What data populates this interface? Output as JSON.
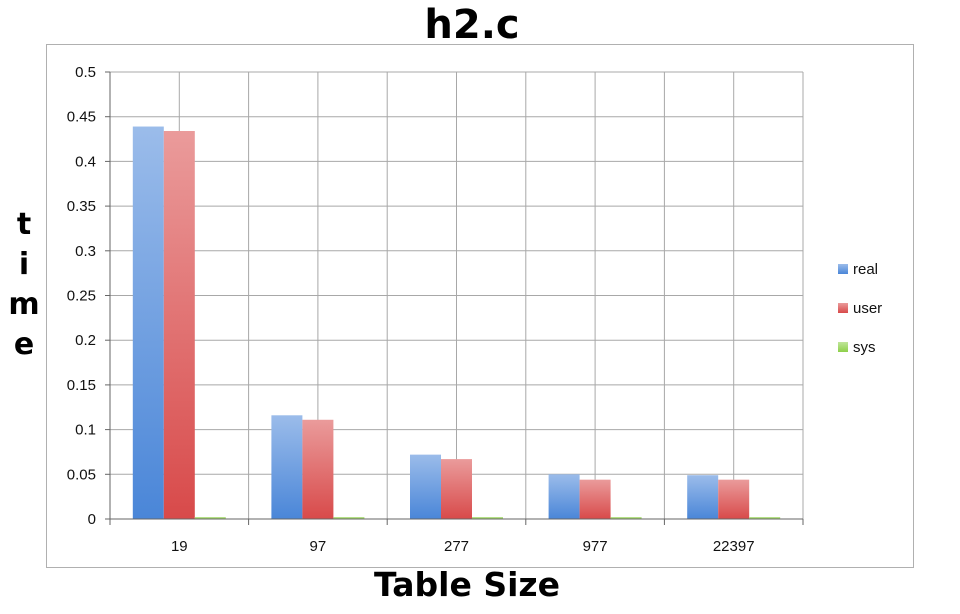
{
  "chart_data": {
    "type": "bar",
    "title": "h2.c",
    "xlabel": "Table Size",
    "ylabel": "time",
    "categories": [
      "19",
      "97",
      "277",
      "977",
      "22397"
    ],
    "series": [
      {
        "name": "real",
        "values": [
          0.439,
          0.116,
          0.072,
          0.05,
          0.049
        ],
        "color": "#4a86d8"
      },
      {
        "name": "user",
        "values": [
          0.434,
          0.111,
          0.067,
          0.044,
          0.044
        ],
        "color": "#d84a4a"
      },
      {
        "name": "sys",
        "values": [
          0.002,
          0.002,
          0.002,
          0.002,
          0.002
        ],
        "color": "#8ed04a"
      }
    ],
    "ylim": [
      0,
      0.5
    ],
    "yticks": [
      "0",
      "0.05",
      "0.1",
      "0.15",
      "0.2",
      "0.25",
      "0.3",
      "0.35",
      "0.4",
      "0.45",
      "0.5"
    ],
    "grid": true,
    "legend_position": "right"
  }
}
